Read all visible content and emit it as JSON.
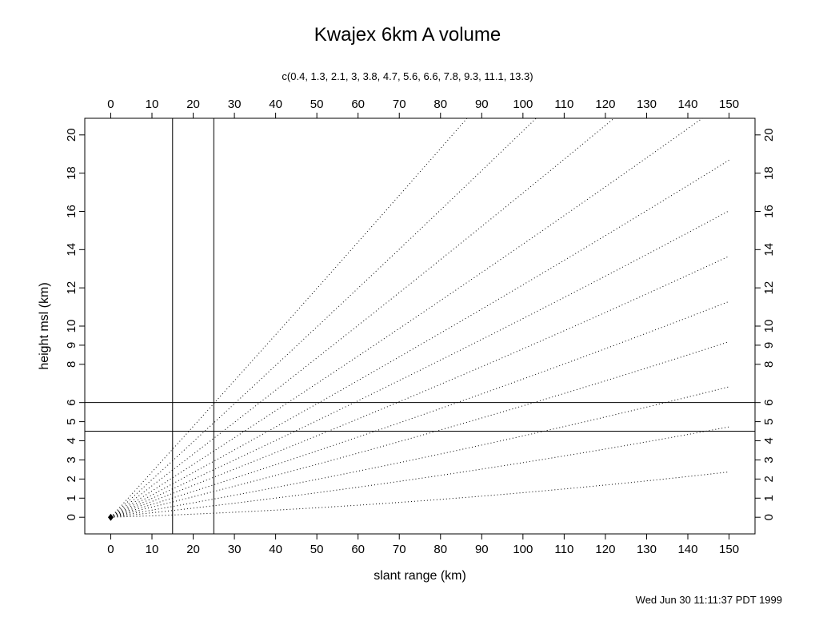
{
  "chart_data": {
    "type": "line",
    "title": "Kwajex 6km A volume",
    "subtitle": "c(0.4, 1.3, 2.1, 3, 3.8, 4.7, 5.6, 6.6, 7.8, 9.3, 11.1, 13.3)",
    "xlabel": "slant range (km)",
    "ylabel": "height msl (km)",
    "footer": "Wed Jun 30 11:11:37 PDT 1999",
    "x_ticks": [
      0,
      10,
      20,
      30,
      40,
      50,
      60,
      70,
      80,
      90,
      100,
      110,
      120,
      130,
      140,
      150
    ],
    "y_ticks": [
      0,
      1,
      2,
      3,
      4,
      5,
      6,
      8,
      9,
      10,
      12,
      14,
      16,
      18,
      20
    ],
    "xlim": [
      -6.3,
      156.3
    ],
    "ylim": [
      -0.87,
      20.87
    ],
    "x_range_km": [
      0,
      150
    ],
    "y_range_km": [
      0,
      20
    ],
    "elevation_angles_deg": [
      0.4,
      1.3,
      2.1,
      3,
      3.8,
      4.7,
      5.6,
      6.6,
      7.8,
      9.3,
      11.1,
      13.3
    ],
    "range_max_km": 150,
    "reference_lines": {
      "vertical_x_km": [
        15,
        25
      ],
      "horizontal_y_km": [
        4.5,
        6
      ]
    },
    "origin_marker": {
      "x": 0,
      "y": 0
    },
    "line_color": "#000000",
    "background_color": "#ffffff",
    "grid": "off",
    "legend": "none"
  }
}
